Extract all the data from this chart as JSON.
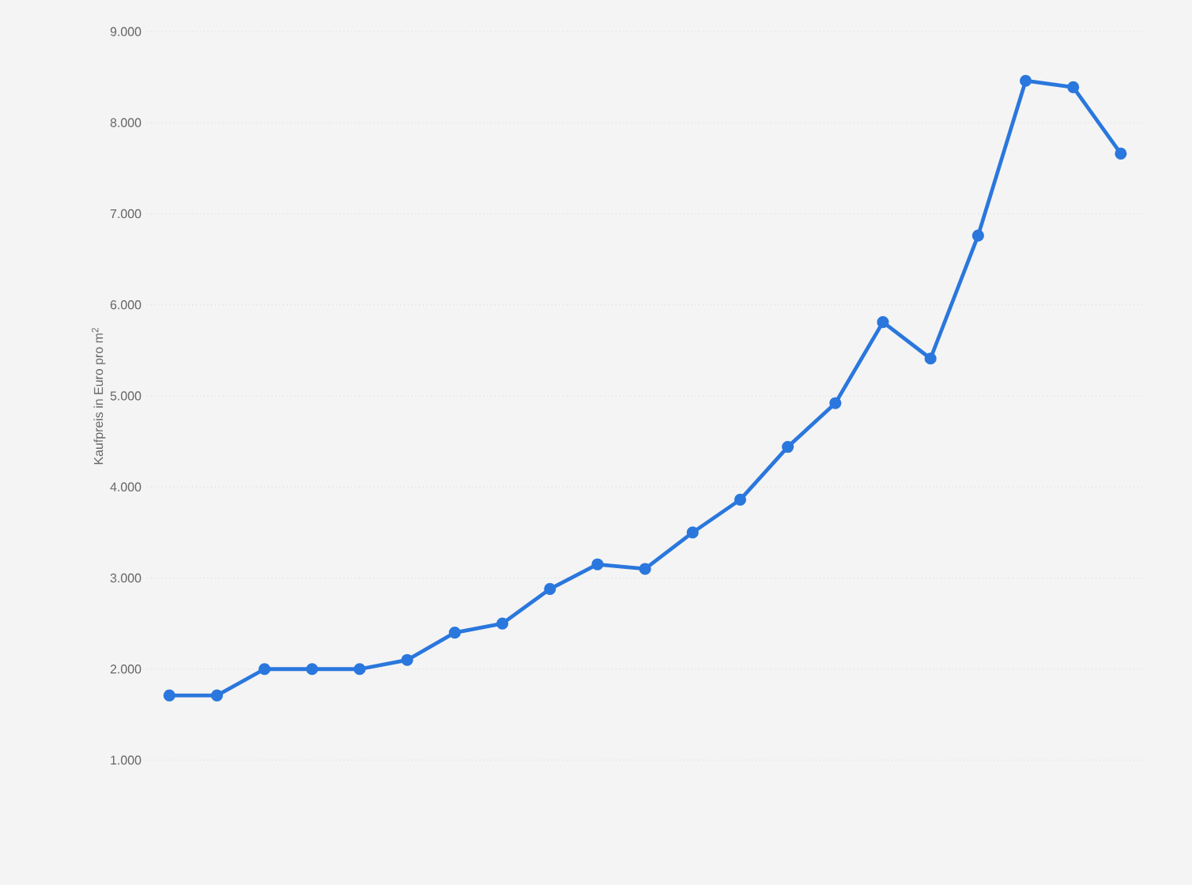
{
  "chart_data": {
    "type": "line",
    "ylabel": "Kaufpreis in Euro pro m$^{2}$",
    "categories": [
      null,
      null,
      null,
      null,
      null,
      null,
      null,
      null,
      null,
      null,
      null,
      null,
      null,
      null,
      null,
      null,
      null,
      null,
      null,
      null,
      null
    ],
    "series": [
      {
        "color": "#2a77dd",
        "values": [
          1710,
          1710,
          2000,
          2000,
          2000,
          2100,
          2400,
          2500,
          2880,
          3150,
          3100,
          3500,
          3860,
          4440,
          4920,
          5810,
          5410,
          6760,
          8460,
          8390,
          7660
        ]
      }
    ],
    "ylim": [
      1000,
      9000
    ],
    "yticks": [
      {
        "value": 1000,
        "label": "1.000"
      },
      {
        "value": 2000,
        "label": "2.000"
      },
      {
        "value": 3000,
        "label": "3.000"
      },
      {
        "value": 4000,
        "label": "4.000"
      },
      {
        "value": 5000,
        "label": "5.000"
      },
      {
        "value": 6000,
        "label": "6.000"
      },
      {
        "value": 7000,
        "label": "7.000"
      },
      {
        "value": 8000,
        "label": "8.000"
      },
      {
        "value": 9000,
        "label": "9.000"
      }
    ],
    "grid": "y",
    "marker": "circle",
    "line_style": "solid"
  }
}
